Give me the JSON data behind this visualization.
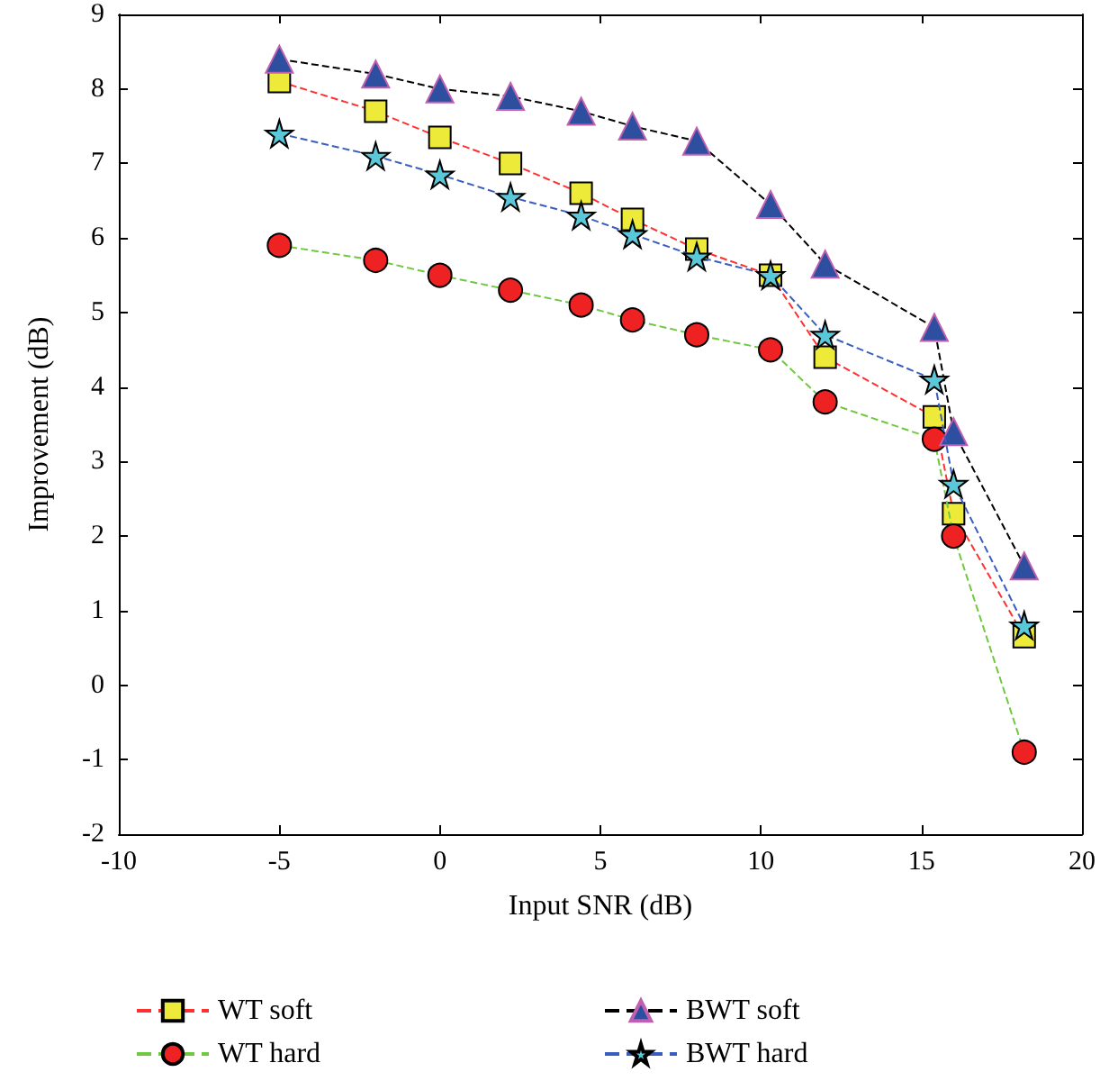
{
  "chart_data": {
    "type": "line",
    "xlabel": "Input SNR (dB)",
    "ylabel": "Improvement (dB)",
    "x": [
      -5,
      -2,
      0,
      2.2,
      4.4,
      6,
      8,
      10.3,
      12,
      15.4,
      16,
      18.2
    ],
    "xlim": [
      -10,
      20
    ],
    "xticks": [
      -10,
      -5,
      0,
      5,
      10,
      15,
      20
    ],
    "ylim": [
      -2,
      9
    ],
    "yticks": [
      -2,
      -1,
      0,
      1,
      2,
      3,
      4,
      5,
      6,
      7,
      8,
      9
    ],
    "grid": false,
    "legend": "bottom",
    "line_style": "dashed",
    "series": [
      {
        "name": "WT soft",
        "color": "#ff3030",
        "marker": "square",
        "colors": [
          "#eeea3a",
          "#eeea3a",
          "#eeea3a",
          "#eeea3a",
          "#eeea3a",
          "#eeea3a",
          "#eeea3a",
          "#eeea3a",
          "#eeea3a",
          "#eeea3a",
          "#eeea3a",
          "#eeea3a"
        ],
        "values": [
          8.1,
          7.7,
          7.35,
          7.0,
          6.6,
          6.25,
          5.85,
          5.5,
          4.4,
          3.6,
          2.3,
          0.65
        ]
      },
      {
        "name": "WT hard",
        "color": "#70c840",
        "marker": "circle",
        "colors": [
          "#ee2222",
          "#ee2222",
          "#ee2222",
          "#ee2222",
          "#ee2222",
          "#ee2222",
          "#ee2222",
          "#ee2222",
          "#ee2222",
          "#ee2222",
          "#ee2222",
          "#ee2222"
        ],
        "values": [
          5.9,
          5.7,
          5.5,
          5.3,
          5.1,
          4.9,
          4.7,
          4.5,
          3.8,
          3.3,
          2.0,
          -0.9
        ]
      },
      {
        "name": "BWT soft",
        "color": "#000000",
        "marker": "triangle",
        "colors": [
          "#2e4ea0",
          "#2e4ea0",
          "#2e4ea0",
          "#2e4ea0",
          "#2e4ea0",
          "#2e4ea0",
          "#2e4ea0",
          "#2e4ea0",
          "#2e4ea0",
          "#2e4ea0",
          "#2e4ea0",
          "#2e4ea0"
        ],
        "values": [
          8.4,
          8.2,
          8.0,
          7.9,
          7.7,
          7.5,
          7.3,
          6.45,
          5.65,
          4.8,
          3.4,
          1.6
        ]
      },
      {
        "name": "BWT hard",
        "color": "#3a5ec0",
        "marker": "star",
        "colors": [
          "#5ac8d8",
          "#5ac8d8",
          "#5ac8d8",
          "#5ac8d8",
          "#5ac8d8",
          "#5ac8d8",
          "#5ac8d8",
          "#5ac8d8",
          "#5ac8d8",
          "#5ac8d8",
          "#5ac8d8",
          "#5ac8d8"
        ],
        "values": [
          7.4,
          7.1,
          6.85,
          6.55,
          6.3,
          6.05,
          5.75,
          5.5,
          4.7,
          4.1,
          2.7,
          0.8
        ]
      }
    ]
  }
}
